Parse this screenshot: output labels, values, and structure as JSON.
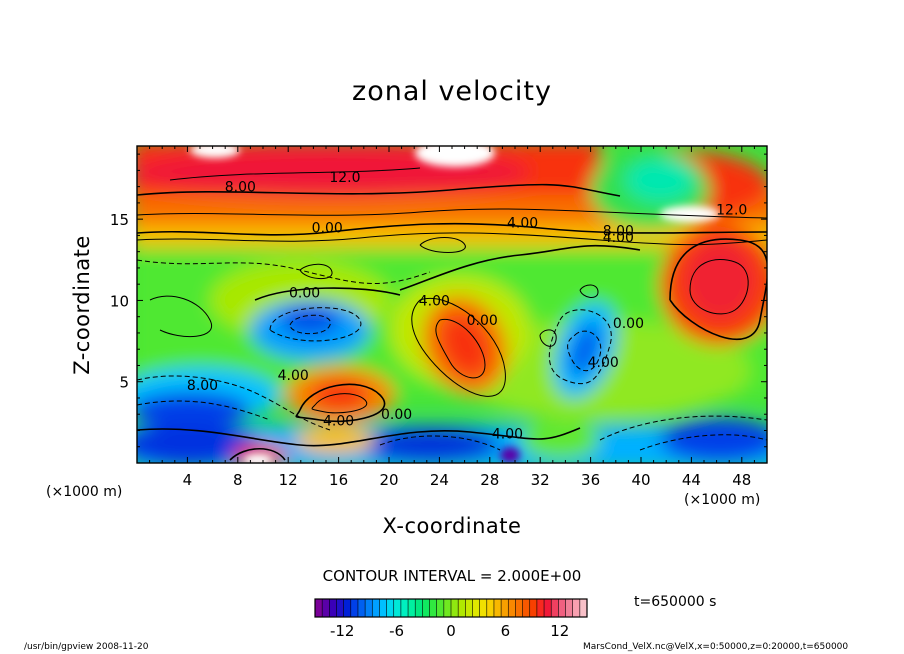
{
  "chart_data": {
    "type": "heatmap",
    "title": "zonal velocity",
    "xlabel": "X-coordinate",
    "ylabel": "Z-coordinate",
    "x_unit_left": "(×1000 m)",
    "x_unit_right": "(×1000 m)",
    "xlim": [
      0,
      50
    ],
    "ylim": [
      0,
      19.5
    ],
    "x_ticks": [
      4,
      8,
      12,
      16,
      20,
      24,
      28,
      32,
      36,
      40,
      44,
      48
    ],
    "y_ticks": [
      5,
      10,
      15
    ],
    "contour_interval": "CONTOUR INTERVAL = 2.000E+00",
    "time_label": "t=650000 s",
    "colorbar": {
      "range": [
        -15,
        15
      ],
      "ticks": [
        -12,
        -6,
        0,
        6,
        12
      ],
      "colors": [
        "#7a0098",
        "#5a00a8",
        "#3a00b8",
        "#2010c8",
        "#0020d8",
        "#0040e8",
        "#0060f0",
        "#0080f8",
        "#00a0ff",
        "#00c0ff",
        "#00d8f0",
        "#00e8d8",
        "#00f0c0",
        "#00f0a0",
        "#00e880",
        "#10e860",
        "#30e840",
        "#50e830",
        "#70e820",
        "#90e810",
        "#b0e800",
        "#c8e800",
        "#e0e800",
        "#f0e000",
        "#f8d000",
        "#f8b800",
        "#f8a000",
        "#f88800",
        "#f87000",
        "#f85800",
        "#f84000",
        "#f82820",
        "#f01838",
        "#f04060",
        "#f06080",
        "#f08098",
        "#f8a0b0",
        "#f8c0c8"
      ]
    },
    "contour_labels": [
      {
        "text": "12.0",
        "x": 16.5,
        "z": 17.6
      },
      {
        "text": "8.00",
        "x": 8.2,
        "z": 17.0
      },
      {
        "text": "0.00",
        "x": 15.1,
        "z": 14.5
      },
      {
        "text": "4.00",
        "x": 30.6,
        "z": 14.8
      },
      {
        "text": "8.00",
        "x": 38.2,
        "z": 14.3
      },
      {
        "text": "4.00",
        "x": 38.2,
        "z": 13.9
      },
      {
        "text": "12.0",
        "x": 47.2,
        "z": 15.6
      },
      {
        "text": "0.00",
        "x": 13.3,
        "z": 10.5
      },
      {
        "text": "4.00",
        "x": 23.6,
        "z": 10.0
      },
      {
        "text": "0.00",
        "x": 27.4,
        "z": 8.8
      },
      {
        "text": "0.00",
        "x": 39.0,
        "z": 8.6
      },
      {
        "text": "4.00",
        "x": 37.0,
        "z": 6.2
      },
      {
        "text": "4.00",
        "x": 12.4,
        "z": 5.4
      },
      {
        "text": "8.00",
        "x": 5.2,
        "z": 4.8
      },
      {
        "text": "4.00",
        "x": 16.0,
        "z": 2.6
      },
      {
        "text": "0.00",
        "x": 20.6,
        "z": 3.0
      },
      {
        "text": "4.00",
        "x": 29.4,
        "z": 1.8
      }
    ]
  },
  "footer": {
    "left": "/usr/bin/gpview  2008-11-20",
    "right": "MarsCond_VelX.nc@VelX,x=0:50000,z=0:20000,t=650000"
  }
}
